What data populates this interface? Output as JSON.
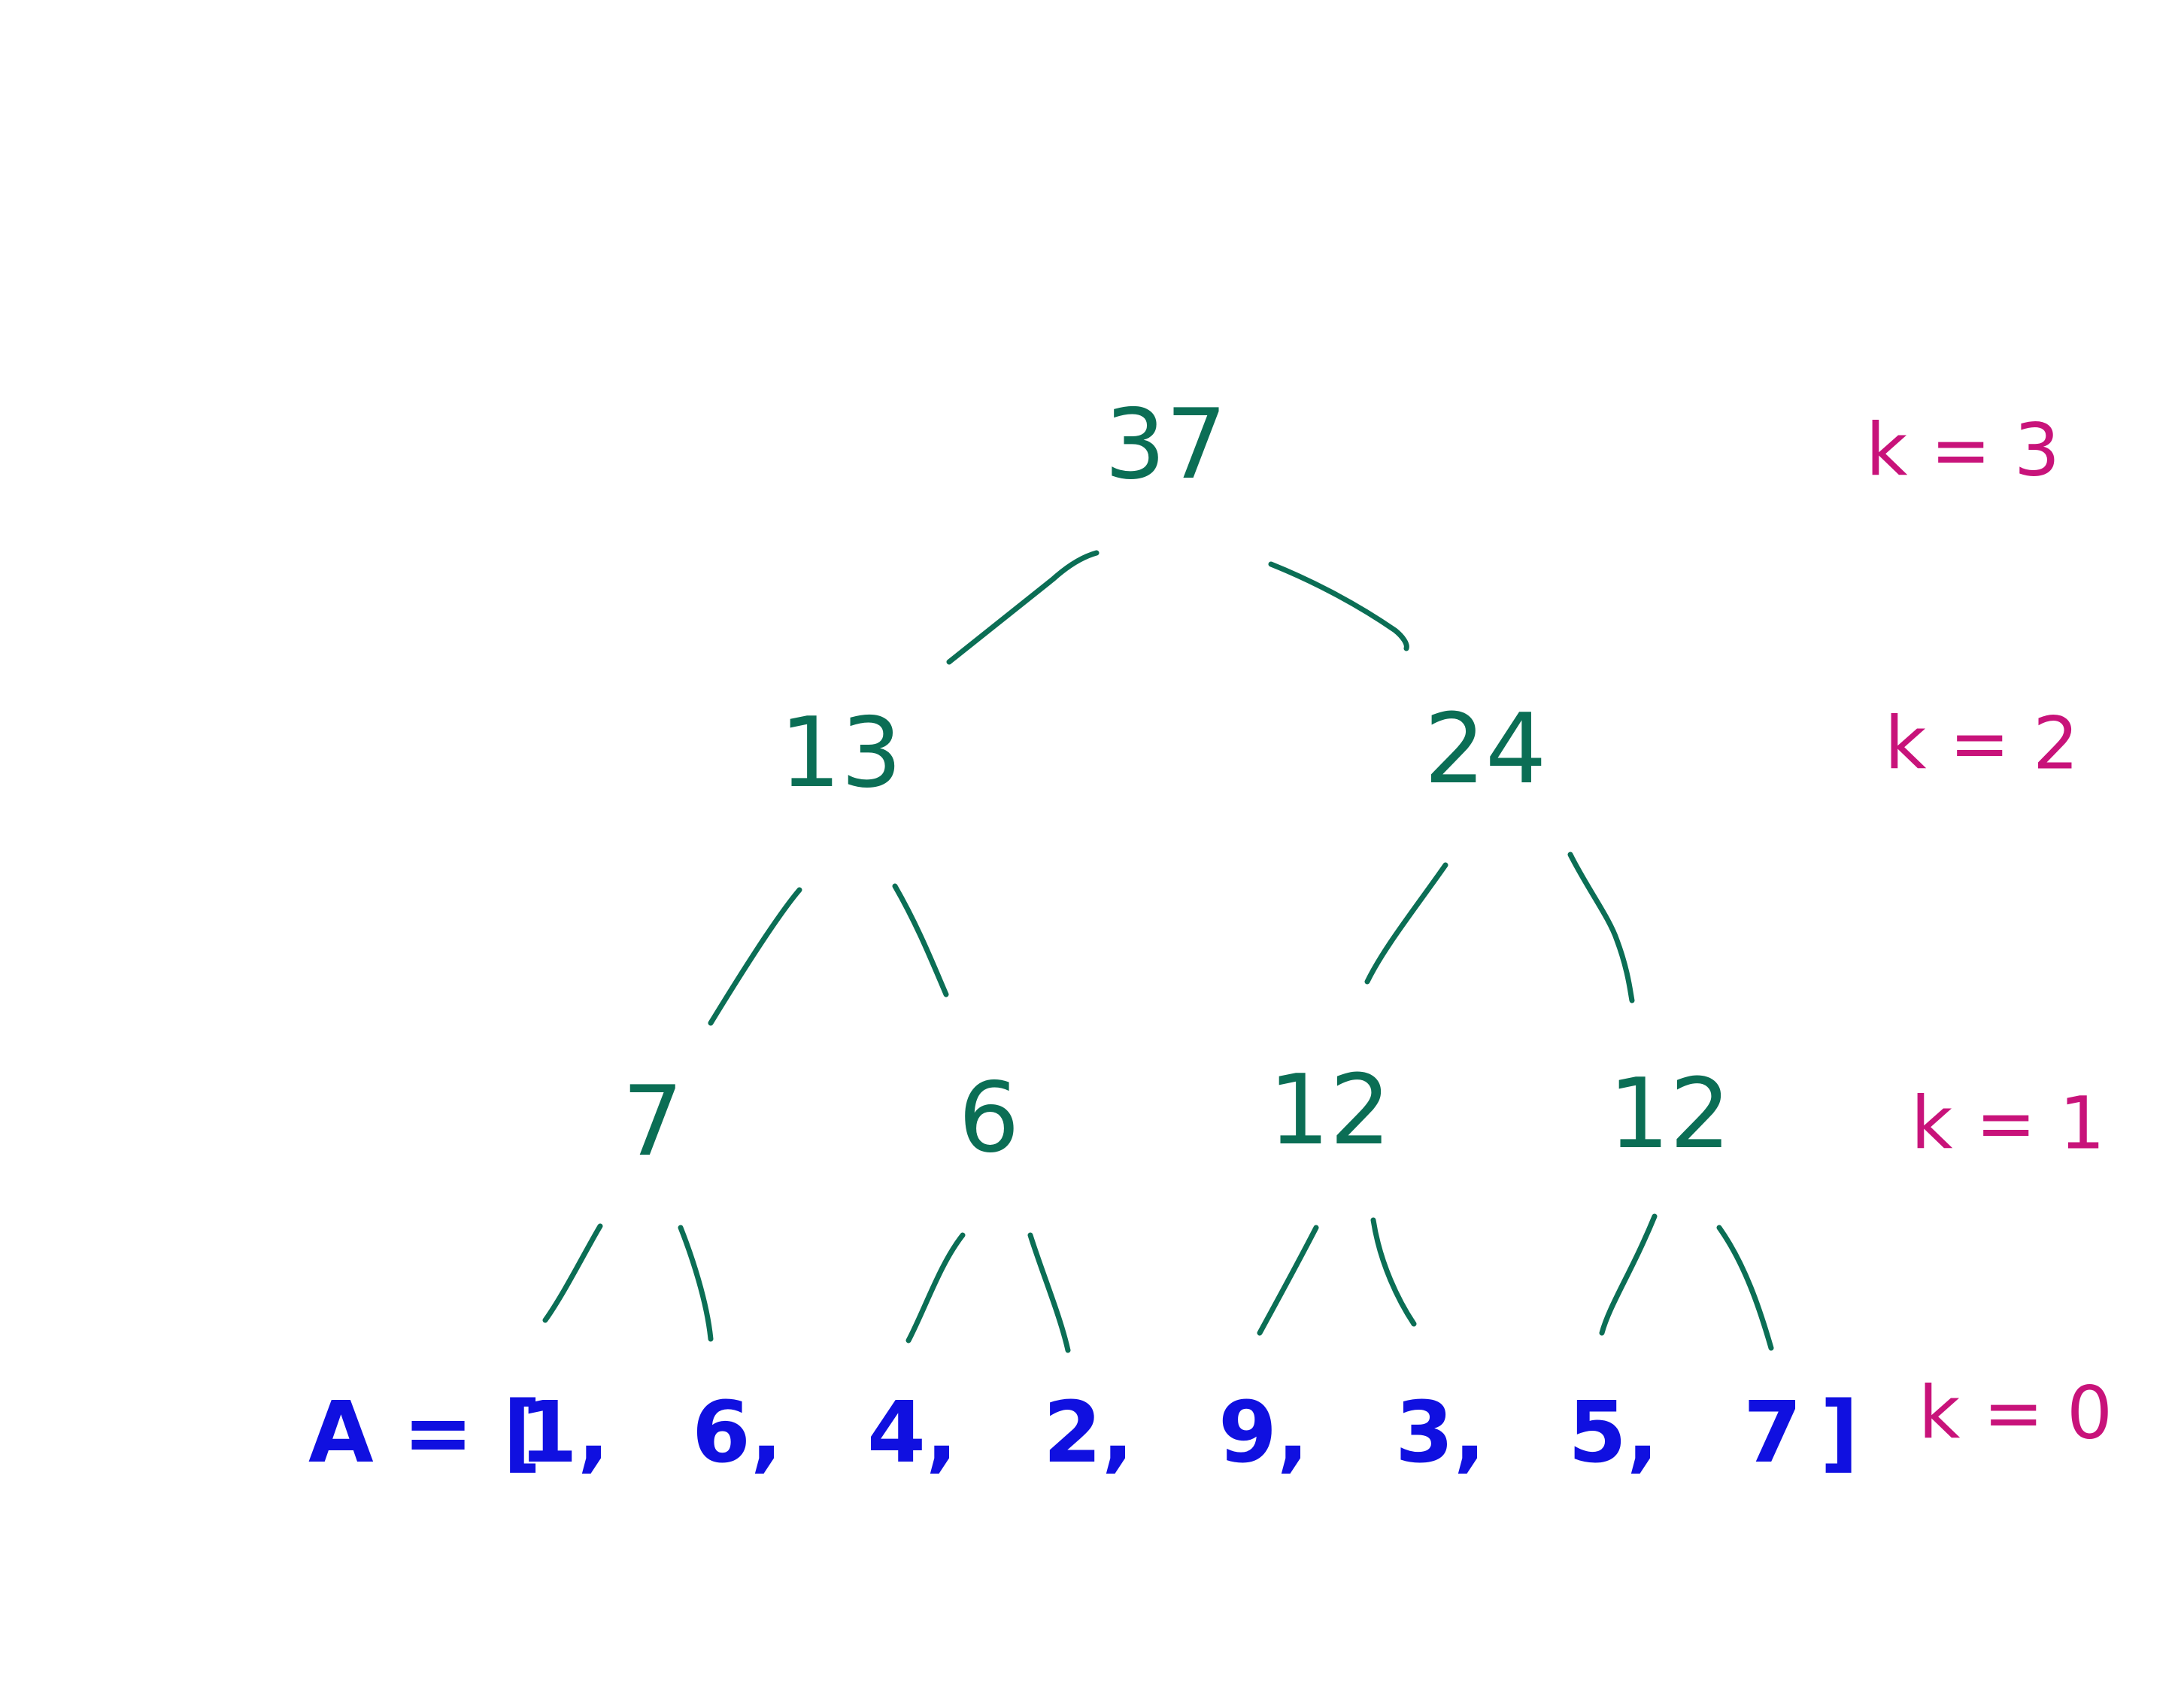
{
  "colors": {
    "tree": "#0b6e55",
    "level_label": "#c8137a",
    "array": "#1010e0",
    "background": "#ffffff"
  },
  "tree": {
    "root": "37",
    "level2": [
      "13",
      "24"
    ],
    "level1": [
      "7",
      "6",
      "12",
      "12"
    ]
  },
  "level_labels": [
    "k = 3",
    "k = 2",
    "k = 1",
    "k = 0"
  ],
  "array": {
    "prefix": "A = [",
    "items": [
      "1,",
      "6,",
      "4,",
      "2,",
      "9,",
      "3,",
      "5,",
      "7"
    ],
    "suffix": "]"
  }
}
